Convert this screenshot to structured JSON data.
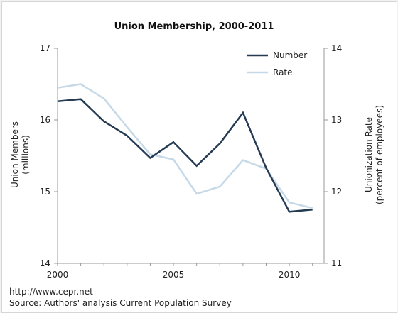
{
  "chart_data": {
    "type": "line",
    "title": "Union Membership, 2000-2011",
    "x": [
      2000,
      2001,
      2002,
      2003,
      2004,
      2005,
      2006,
      2007,
      2008,
      2009,
      2010,
      2011
    ],
    "x_ticks": [
      "2000",
      "2005",
      "2010"
    ],
    "xlim": [
      2000,
      2011.5
    ],
    "y_left": {
      "label_line1": "Union Members",
      "label_line2": "(millions)",
      "ylim": [
        14,
        17
      ],
      "ticks": [
        "14",
        "15",
        "16",
        "17"
      ]
    },
    "y_right": {
      "label_line1": "Unionization Rate",
      "label_line2": "(percent of employees)",
      "ylim": [
        11,
        14
      ],
      "ticks": [
        "11",
        "12",
        "13",
        "14"
      ]
    },
    "series": [
      {
        "name": "Number",
        "axis": "left",
        "color": "#243b53",
        "values": [
          16.26,
          16.29,
          15.98,
          15.78,
          15.47,
          15.69,
          15.36,
          15.67,
          16.1,
          15.33,
          14.72,
          14.75
        ]
      },
      {
        "name": "Rate",
        "axis": "right",
        "color": "#c5d9e8",
        "values": [
          13.45,
          13.5,
          13.3,
          12.9,
          12.52,
          12.45,
          11.97,
          12.07,
          12.44,
          12.32,
          11.85,
          11.77
        ]
      }
    ],
    "legend_position": "top-right",
    "grid": false
  },
  "footer": {
    "url": "http://www.cepr.net",
    "source": "Source: Authors' analysis Current Population Survey"
  }
}
